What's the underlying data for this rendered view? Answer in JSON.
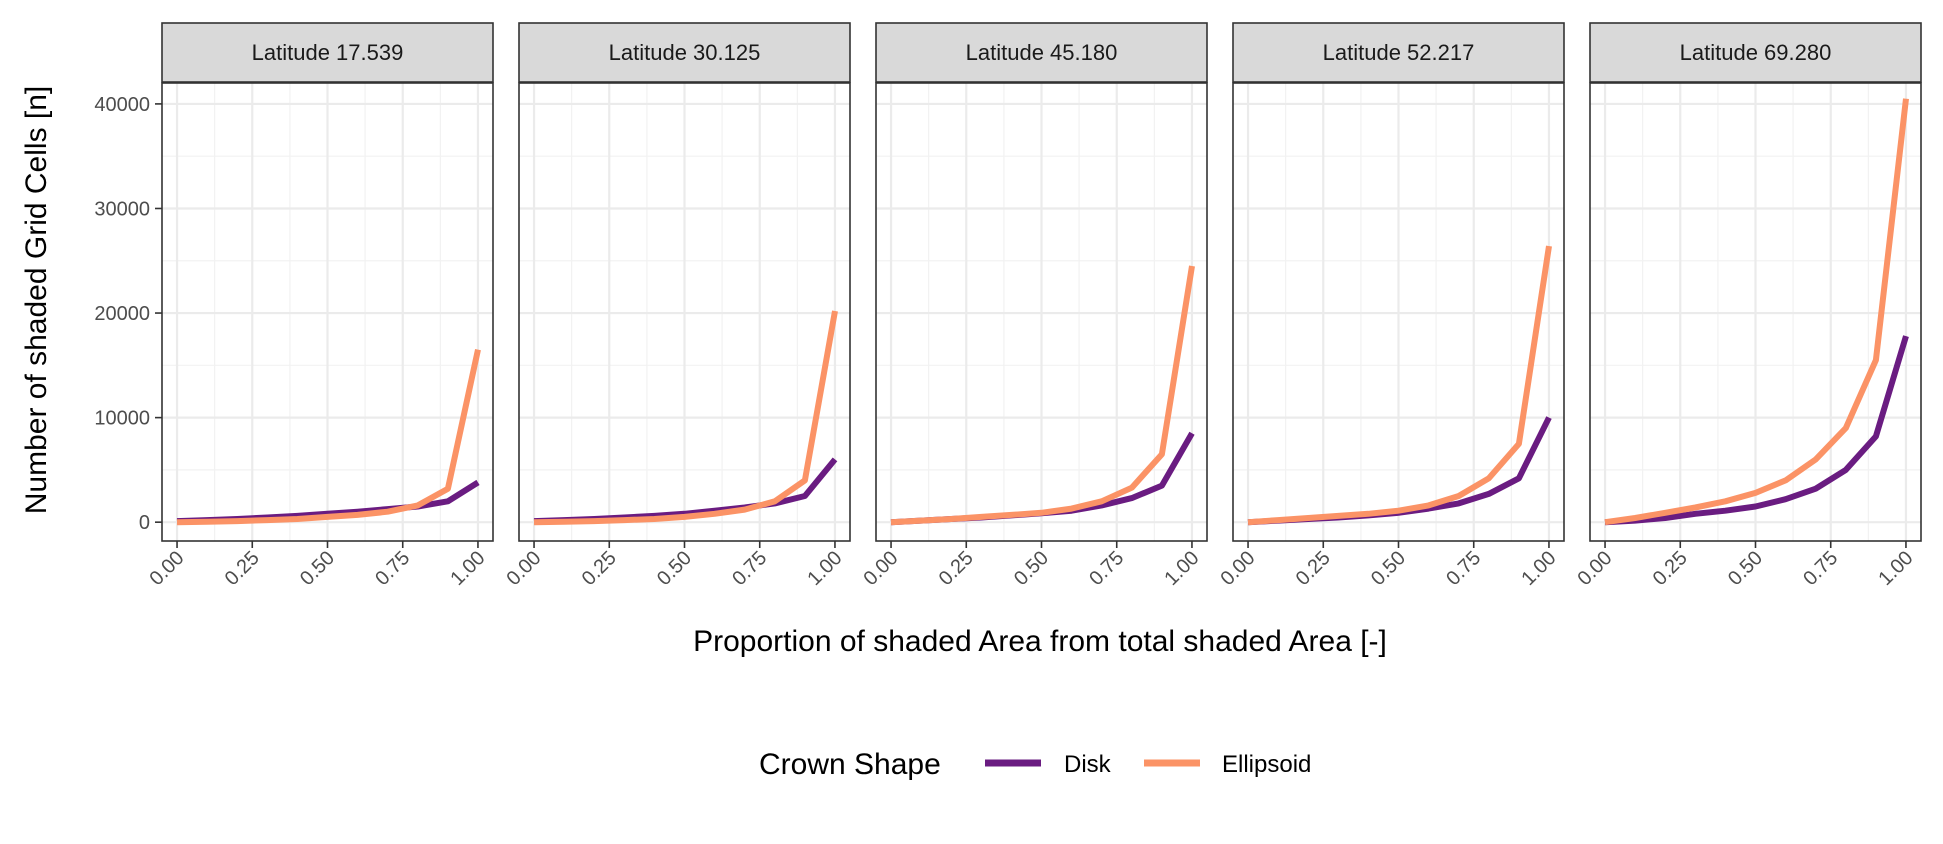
{
  "chart_data": {
    "type": "line",
    "xlabel": "Proportion of shaded Area from total shaded Area [-]",
    "ylabel": "Number of shaded Grid Cells [n]",
    "x": [
      0.0,
      0.1,
      0.2,
      0.3,
      0.4,
      0.5,
      0.6,
      0.7,
      0.8,
      0.9,
      1.0
    ],
    "xlim": [
      -0.05,
      1.05
    ],
    "ylim": [
      -1800,
      42000
    ],
    "x_ticks": [
      0.0,
      0.25,
      0.5,
      0.75,
      1.0
    ],
    "x_tick_labels": [
      "0.00",
      "0.25",
      "0.50",
      "0.75",
      "1.00"
    ],
    "y_ticks": [
      0,
      10000,
      20000,
      30000,
      40000
    ],
    "y_tick_labels": [
      "0",
      "10000",
      "20000",
      "30000",
      "40000"
    ],
    "grid": true,
    "legend": {
      "title": "Crown Shape",
      "position": "bottom",
      "entries": [
        {
          "name": "Disk",
          "color": "#6a1c81"
        },
        {
          "name": "Ellipsoid",
          "color": "#fb9366"
        }
      ]
    },
    "panels": [
      {
        "title": "Latitude 17.539",
        "series": [
          {
            "name": "Disk",
            "values": [
              100,
              200,
              300,
              450,
              600,
              800,
              1000,
              1250,
              1500,
              2000,
              3800
            ]
          },
          {
            "name": "Ellipsoid",
            "values": [
              0,
              50,
              100,
              200,
              300,
              500,
              700,
              1000,
              1600,
              3200,
              16500
            ]
          }
        ]
      },
      {
        "title": "Latitude 30.125",
        "series": [
          {
            "name": "Disk",
            "values": [
              100,
              200,
              300,
              450,
              600,
              800,
              1100,
              1400,
              1800,
              2500,
              6000
            ]
          },
          {
            "name": "Ellipsoid",
            "values": [
              0,
              50,
              100,
              200,
              300,
              500,
              800,
              1200,
              2000,
              4000,
              20200
            ]
          }
        ]
      },
      {
        "title": "Latitude 45.180",
        "series": [
          {
            "name": "Disk",
            "values": [
              0,
              150,
              300,
              450,
              650,
              850,
              1100,
              1600,
              2300,
              3500,
              8500
            ]
          },
          {
            "name": "Ellipsoid",
            "values": [
              0,
              150,
              300,
              500,
              700,
              900,
              1300,
              2000,
              3300,
              6500,
              24500
            ]
          }
        ]
      },
      {
        "title": "Latitude 52.217",
        "series": [
          {
            "name": "Disk",
            "values": [
              0,
              150,
              300,
              450,
              650,
              900,
              1300,
              1800,
              2700,
              4200,
              10000
            ]
          },
          {
            "name": "Ellipsoid",
            "values": [
              0,
              200,
              400,
              600,
              800,
              1100,
              1600,
              2500,
              4200,
              7500,
              26400
            ]
          }
        ]
      },
      {
        "title": "Latitude 69.280",
        "series": [
          {
            "name": "Disk",
            "values": [
              0,
              150,
              400,
              800,
              1100,
              1500,
              2200,
              3200,
              5000,
              8200,
              17800
            ]
          },
          {
            "name": "Ellipsoid",
            "values": [
              0,
              400,
              900,
              1400,
              2000,
              2800,
              4000,
              6000,
              9000,
              15500,
              40500
            ]
          }
        ]
      }
    ]
  }
}
